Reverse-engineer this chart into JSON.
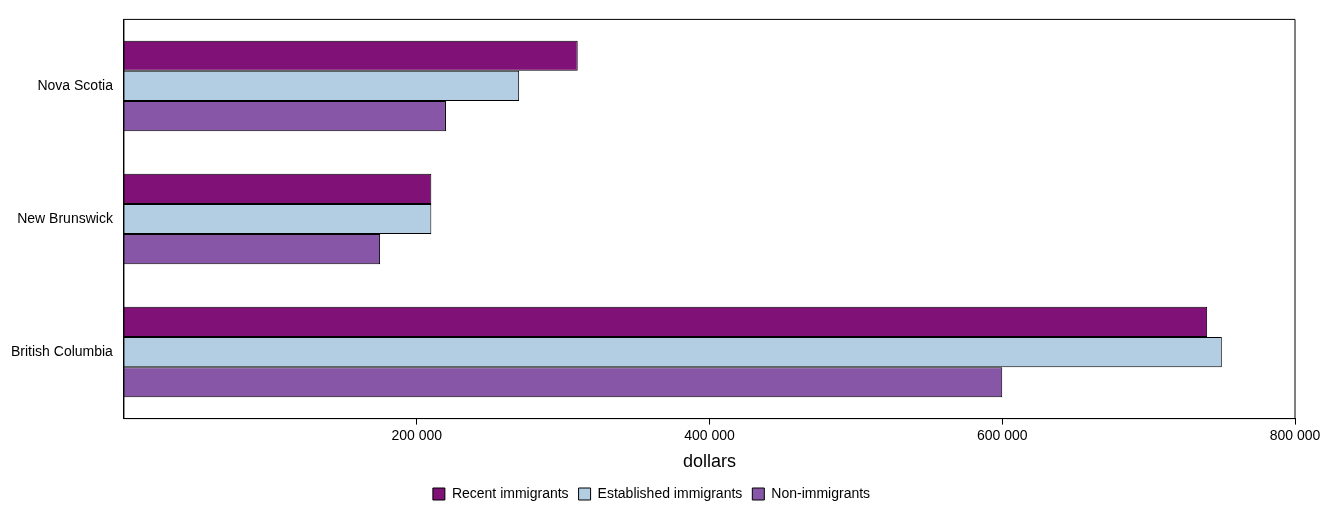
{
  "chart_data": {
    "type": "bar",
    "orientation": "horizontal",
    "categories": [
      "Nova Scotia",
      "New Brunswick",
      "British Columbia"
    ],
    "series": [
      {
        "name": "Recent immigrants",
        "color": "#7f1177",
        "values": [
          310000,
          210000,
          740000
        ]
      },
      {
        "name": "Established immigrants",
        "color": "#b3cde3",
        "values": [
          270000,
          210000,
          750000
        ]
      },
      {
        "name": "Non-immigrants",
        "color": "#8856a7",
        "values": [
          220000,
          175000,
          600000
        ]
      }
    ],
    "xlabel": "dollars",
    "xlim": [
      0,
      800000
    ],
    "xticks": [
      {
        "value": 200000,
        "label": "200 000"
      },
      {
        "value": 400000,
        "label": "400 000"
      },
      {
        "value": 600000,
        "label": "600 000"
      },
      {
        "value": 800000,
        "label": "800 000"
      }
    ],
    "grid": false,
    "legend": "bottom"
  }
}
